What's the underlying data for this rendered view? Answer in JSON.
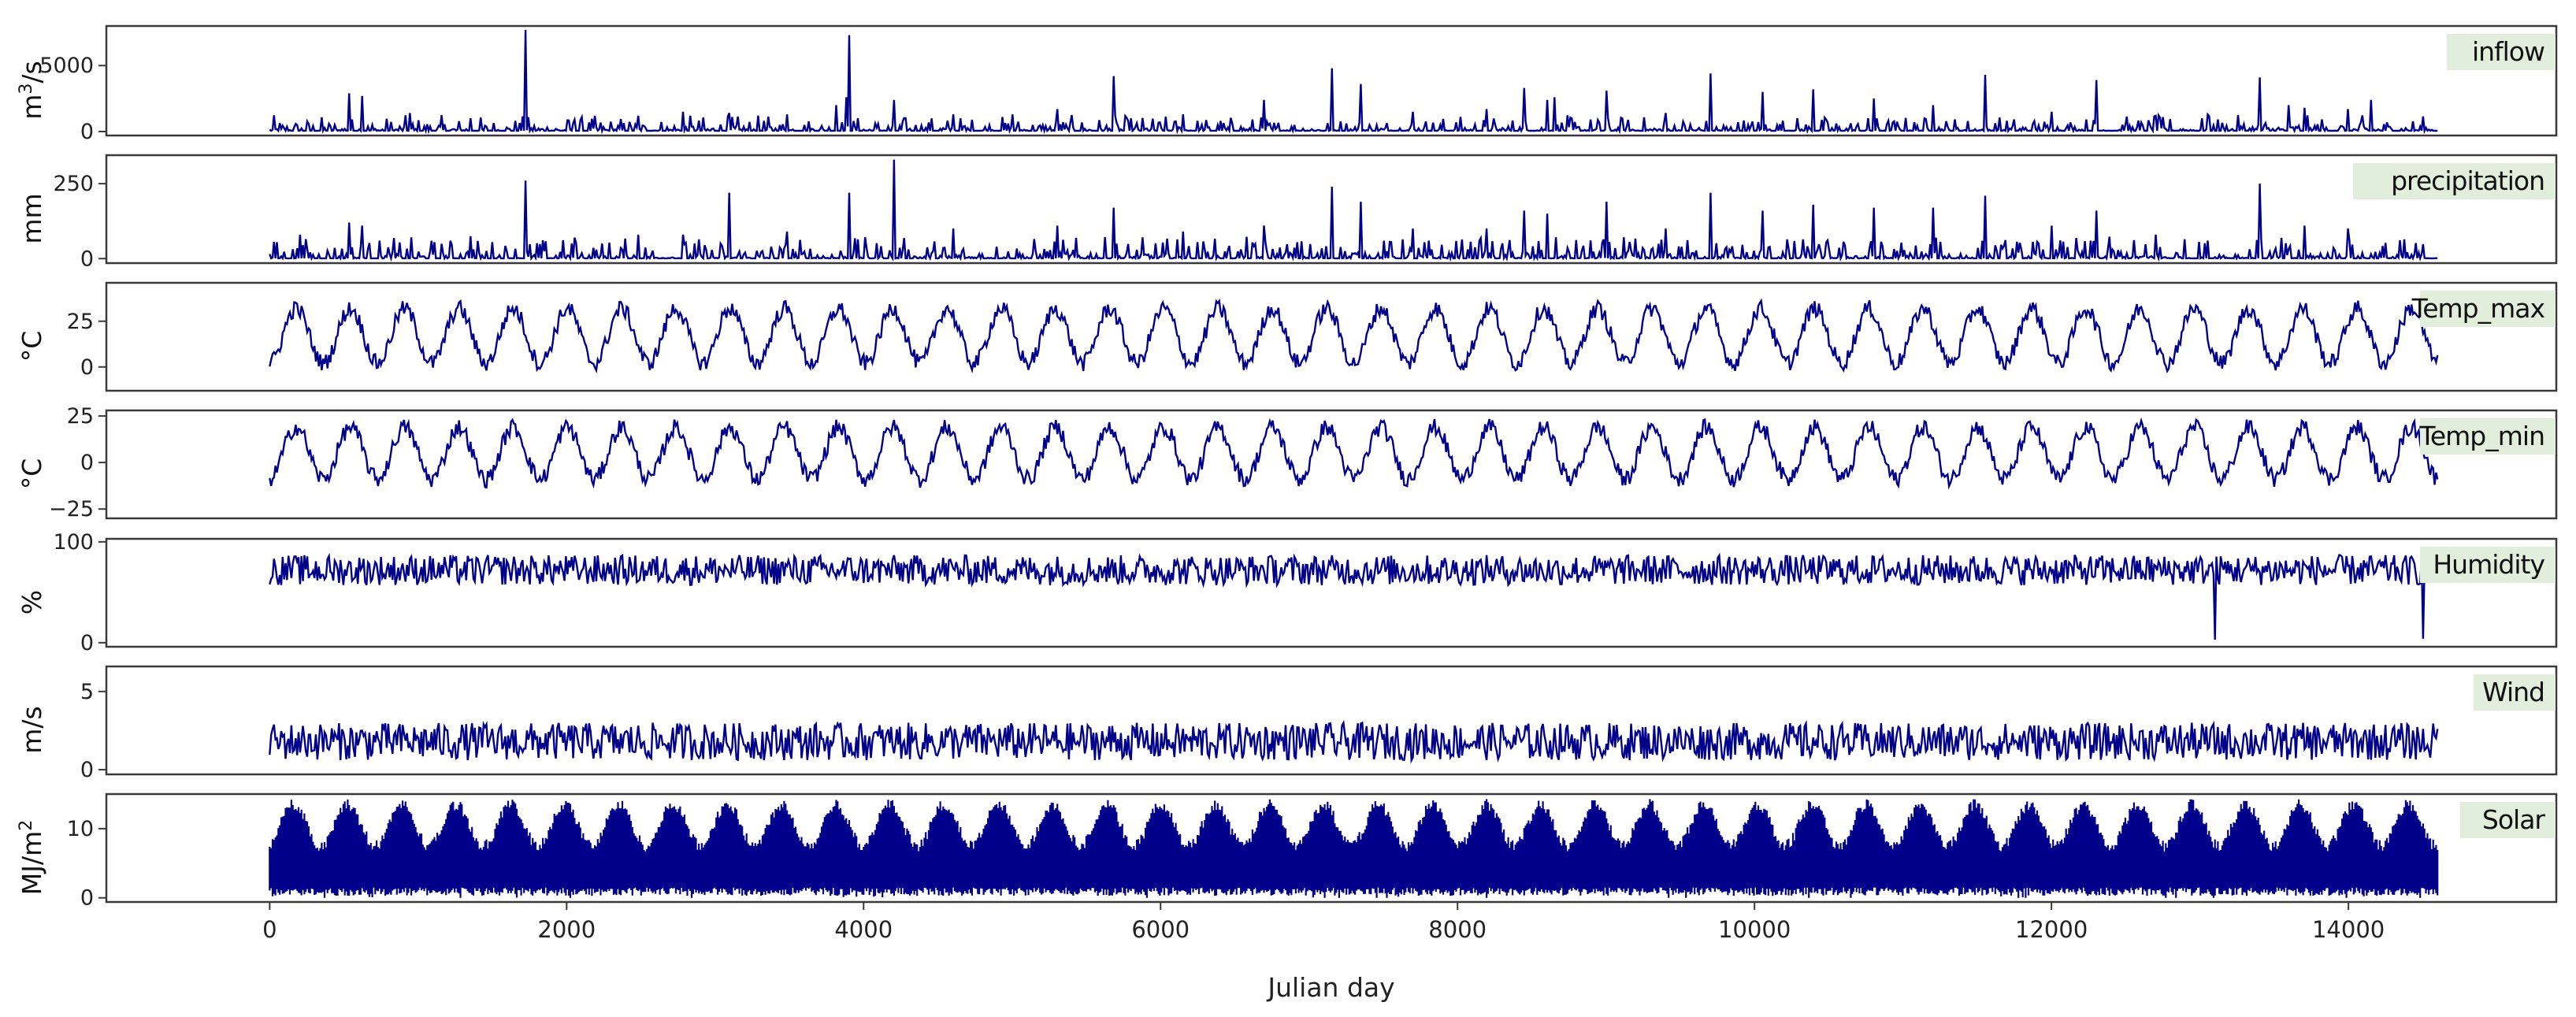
{
  "chart_data": {
    "type": "line",
    "xlabel": "Julian day",
    "xlim": [
      -1100,
      15400
    ],
    "x_ticks": [
      0,
      2000,
      4000,
      6000,
      8000,
      10000,
      12000,
      14000
    ],
    "x_tick_labels": [
      "0",
      "2000",
      "4000",
      "6000",
      "8000",
      "10000",
      "12000",
      "14000"
    ],
    "x_range": [
      0,
      14600
    ],
    "grid": false,
    "line_color": "#00008b",
    "label_box_color": "#e2eedc",
    "panels": [
      {
        "name": "inflow",
        "label": "inflow",
        "ylabel": "m³/s",
        "ylabel_main": "m",
        "ylabel_sup": "3",
        "ylabel_tail": "/s",
        "ylim": [
          -300,
          8000
        ],
        "yticks": [
          0,
          5000
        ],
        "ytick_labels": [
          "0",
          "5000"
        ],
        "pattern": "spiky",
        "base": 60,
        "noise": 200,
        "peaks": [
          [
            540,
            2900
          ],
          [
            620,
            2700
          ],
          [
            940,
            1400
          ],
          [
            1350,
            1000
          ],
          [
            1720,
            7700
          ],
          [
            2050,
            900
          ],
          [
            2480,
            1200
          ],
          [
            2780,
            1500
          ],
          [
            3100,
            1400
          ],
          [
            3480,
            1300
          ],
          [
            3820,
            2000
          ],
          [
            3880,
            2600
          ],
          [
            3900,
            7300
          ],
          [
            4200,
            2400
          ],
          [
            4600,
            1300
          ],
          [
            5000,
            1300
          ],
          [
            5300,
            1700
          ],
          [
            5680,
            4200
          ],
          [
            6150,
            1300
          ],
          [
            6700,
            2400
          ],
          [
            7150,
            4800
          ],
          [
            7350,
            3600
          ],
          [
            7700,
            1500
          ],
          [
            8200,
            1700
          ],
          [
            8450,
            3300
          ],
          [
            8600,
            2400
          ],
          [
            8650,
            2600
          ],
          [
            9000,
            3100
          ],
          [
            9400,
            1400
          ],
          [
            9700,
            4400
          ],
          [
            10050,
            3000
          ],
          [
            10400,
            3200
          ],
          [
            10800,
            2500
          ],
          [
            11200,
            2000
          ],
          [
            11550,
            4300
          ],
          [
            12000,
            1500
          ],
          [
            12300,
            3900
          ],
          [
            12700,
            1200
          ],
          [
            13050,
            1300
          ],
          [
            13400,
            4100
          ],
          [
            13600,
            2000
          ],
          [
            13700,
            1800
          ],
          [
            14000,
            1700
          ],
          [
            14150,
            2400
          ]
        ]
      },
      {
        "name": "precipitation",
        "label": "precipitation",
        "ylabel": "mm",
        "ylim": [
          -15,
          345
        ],
        "yticks": [
          0,
          250
        ],
        "ytick_labels": [
          "0",
          "250"
        ],
        "pattern": "spiky",
        "base": 1,
        "noise": 12,
        "peaks": [
          [
            200,
            80
          ],
          [
            540,
            120
          ],
          [
            620,
            110
          ],
          [
            1350,
            75
          ],
          [
            1720,
            260
          ],
          [
            2050,
            70
          ],
          [
            2480,
            80
          ],
          [
            2780,
            80
          ],
          [
            3100,
            220
          ],
          [
            3480,
            90
          ],
          [
            3900,
            220
          ],
          [
            4200,
            330
          ],
          [
            4600,
            100
          ],
          [
            5300,
            110
          ],
          [
            5680,
            170
          ],
          [
            6150,
            90
          ],
          [
            6700,
            110
          ],
          [
            7150,
            240
          ],
          [
            7350,
            190
          ],
          [
            7700,
            100
          ],
          [
            8200,
            100
          ],
          [
            8450,
            160
          ],
          [
            8600,
            150
          ],
          [
            9000,
            190
          ],
          [
            9400,
            100
          ],
          [
            9700,
            220
          ],
          [
            10050,
            160
          ],
          [
            10400,
            180
          ],
          [
            10800,
            170
          ],
          [
            11200,
            170
          ],
          [
            11550,
            210
          ],
          [
            12000,
            110
          ],
          [
            12300,
            160
          ],
          [
            12700,
            80
          ],
          [
            13050,
            60
          ],
          [
            13400,
            250
          ],
          [
            13700,
            110
          ],
          [
            14000,
            100
          ]
        ]
      },
      {
        "name": "Temp_max",
        "label": "Temp_max",
        "ylabel": "°C",
        "ylim": [
          -13,
          46
        ],
        "yticks": [
          0,
          25
        ],
        "ytick_labels": [
          "0",
          "25"
        ],
        "pattern": "seasonal",
        "mean": 17,
        "amp": 15,
        "noise": 9,
        "period": 365.25
      },
      {
        "name": "Temp_min",
        "label": "Temp_min",
        "ylabel": "°C",
        "ylim": [
          -30,
          28
        ],
        "yticks": [
          -25,
          0,
          25
        ],
        "ytick_labels": [
          "−25",
          "0",
          "25"
        ],
        "pattern": "seasonal",
        "mean": 5,
        "amp": 14,
        "noise": 9,
        "period": 365.25
      },
      {
        "name": "Humidity",
        "label": "Humidity",
        "ylabel": "%",
        "ylim": [
          -4,
          103
        ],
        "yticks": [
          0,
          100
        ],
        "ytick_labels": [
          "0",
          "100"
        ],
        "pattern": "bounded",
        "mean": 72,
        "noise": 30,
        "clip": [
          25,
          100
        ],
        "dips": [
          [
            13100,
            3
          ],
          [
            14500,
            4
          ]
        ]
      },
      {
        "name": "Wind",
        "label": "Wind",
        "ylabel": "m/s",
        "ylim": [
          -0.3,
          6.6
        ],
        "yticks": [
          0,
          5
        ],
        "ytick_labels": [
          "0",
          "5"
        ],
        "pattern": "bounded",
        "mean": 1.8,
        "noise": 2.4,
        "clip": [
          0.1,
          6.2
        ]
      },
      {
        "name": "Solar",
        "label": "Solar",
        "ylabel": "MJ/m²",
        "ylabel_main": "MJ/m",
        "ylabel_sup": "2",
        "ylabel_tail": "",
        "ylim": [
          -0.6,
          15
        ],
        "yticks": [
          0,
          10
        ],
        "ytick_labels": [
          "0",
          "10"
        ],
        "pattern": "envelope",
        "mean": 10.5,
        "amp": 3,
        "period": 365.25
      }
    ]
  }
}
